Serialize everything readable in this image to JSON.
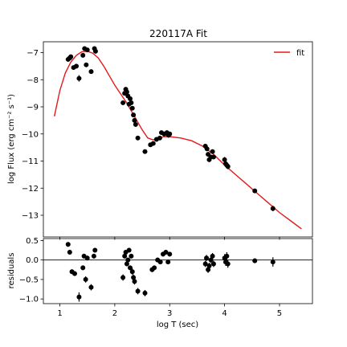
{
  "chart_data": [
    {
      "panel": "main",
      "type": "scatter",
      "title": "220117A Fit",
      "xlabel": "",
      "ylabel": "log Flux (erg cm⁻² s⁻¹)",
      "xlim": [
        0.7,
        5.6
      ],
      "ylim": [
        -13.8,
        -6.6
      ],
      "xticks": [
        1,
        2,
        3,
        4,
        5
      ],
      "yticks": [
        -13,
        -12,
        -11,
        -10,
        -9,
        -8,
        -7
      ],
      "ytick_labels": [
        "−13",
        "−12",
        "−11",
        "−10",
        "−9",
        "−8",
        "−7"
      ],
      "grid": false,
      "legend": {
        "placement": "top-right",
        "entries": [
          {
            "label": "fit",
            "color": "#e31a1c"
          }
        ]
      },
      "series": [
        {
          "name": "fit",
          "kind": "line",
          "color": "#e31a1c",
          "x": [
            0.9,
            1.0,
            1.1,
            1.2,
            1.3,
            1.4,
            1.5,
            1.6,
            1.7,
            1.8,
            1.9,
            2.0,
            2.1,
            2.2,
            2.3,
            2.4,
            2.5,
            2.6,
            2.7,
            2.8,
            2.9,
            3.0,
            3.2,
            3.4,
            3.6,
            3.8,
            4.0,
            4.2,
            4.4,
            4.6,
            4.8,
            5.0,
            5.2,
            5.4
          ],
          "y": [
            -9.35,
            -8.4,
            -7.75,
            -7.35,
            -7.1,
            -6.97,
            -6.95,
            -7.02,
            -7.2,
            -7.5,
            -7.85,
            -8.2,
            -8.5,
            -8.8,
            -9.15,
            -9.5,
            -9.85,
            -10.15,
            -10.22,
            -10.15,
            -10.1,
            -10.1,
            -10.15,
            -10.25,
            -10.45,
            -10.75,
            -11.15,
            -11.5,
            -11.85,
            -12.2,
            -12.55,
            -12.9,
            -13.2,
            -13.5
          ]
        },
        {
          "name": "",
          "kind": "points",
          "color": "#000000",
          "points": [
            [
              1.15,
              -7.25,
              0.05
            ],
            [
              1.18,
              -7.2,
              0.05
            ],
            [
              1.2,
              -7.15,
              0.05
            ],
            [
              1.25,
              -7.55,
              0.05
            ],
            [
              1.3,
              -7.5,
              0.05
            ],
            [
              1.35,
              -7.95,
              0.12
            ],
            [
              1.42,
              -7.1,
              0.05
            ],
            [
              1.45,
              -6.85,
              0.05
            ],
            [
              1.48,
              -7.45,
              0.08
            ],
            [
              1.5,
              -6.9,
              0.05
            ],
            [
              1.57,
              -7.7,
              0.08
            ],
            [
              1.63,
              -6.85,
              0.05
            ],
            [
              1.65,
              -6.95,
              0.05
            ],
            [
              2.15,
              -8.85,
              0.06
            ],
            [
              2.18,
              -8.5,
              0.06
            ],
            [
              2.2,
              -8.35,
              0.06
            ],
            [
              2.22,
              -8.45,
              0.06
            ],
            [
              2.24,
              -8.6,
              0.06
            ],
            [
              2.26,
              -8.9,
              0.06
            ],
            [
              2.28,
              -8.7,
              0.06
            ],
            [
              2.3,
              -8.85,
              0.06
            ],
            [
              2.32,
              -9.05,
              0.08
            ],
            [
              2.34,
              -9.3,
              0.08
            ],
            [
              2.36,
              -9.5,
              0.08
            ],
            [
              2.38,
              -9.65,
              0.08
            ],
            [
              2.42,
              -10.15,
              0.06
            ],
            [
              2.55,
              -10.65,
              0.06
            ],
            [
              2.65,
              -10.4,
              0.06
            ],
            [
              2.7,
              -10.35,
              0.06
            ],
            [
              2.76,
              -10.2,
              0.06
            ],
            [
              2.82,
              -10.15,
              0.06
            ],
            [
              2.85,
              -9.95,
              0.06
            ],
            [
              2.9,
              -10.0,
              0.06
            ],
            [
              2.95,
              -9.95,
              0.06
            ],
            [
              2.98,
              -10.05,
              0.06
            ],
            [
              3.0,
              -10.0,
              0.06
            ],
            [
              3.65,
              -10.45,
              0.08
            ],
            [
              3.68,
              -10.55,
              0.08
            ],
            [
              3.7,
              -10.75,
              0.08
            ],
            [
              3.72,
              -10.95,
              0.08
            ],
            [
              3.75,
              -10.85,
              0.08
            ],
            [
              3.78,
              -10.65,
              0.08
            ],
            [
              3.8,
              -10.85,
              0.08
            ],
            [
              4.0,
              -10.95,
              0.1
            ],
            [
              4.02,
              -11.1,
              0.1
            ],
            [
              4.04,
              -11.15,
              0.1
            ],
            [
              4.06,
              -11.2,
              0.1
            ],
            [
              4.55,
              -12.1,
              0.06
            ],
            [
              4.88,
              -12.75,
              0.1
            ]
          ]
        }
      ]
    },
    {
      "panel": "residuals",
      "type": "scatter",
      "title": "",
      "xlabel": "log T (sec)",
      "ylabel": "residuals",
      "xlim": [
        0.7,
        5.6
      ],
      "ylim": [
        -1.12,
        0.55
      ],
      "xticks": [
        1,
        2,
        3,
        4,
        5
      ],
      "xtick_labels": [
        "1",
        "2",
        "3",
        "4",
        "5"
      ],
      "yticks": [
        -1.0,
        -0.5,
        0.0,
        0.5
      ],
      "ytick_labels": [
        "−1.0",
        "−0.5",
        "0.0",
        "0.5"
      ],
      "grid": false,
      "reference_line": 0.0,
      "series": [
        {
          "name": "",
          "kind": "points",
          "color": "#000000",
          "points": [
            [
              1.15,
              0.4,
              0.06
            ],
            [
              1.18,
              0.2,
              0.06
            ],
            [
              1.22,
              -0.3,
              0.06
            ],
            [
              1.27,
              -0.35,
              0.06
            ],
            [
              1.35,
              -0.95,
              0.12
            ],
            [
              1.42,
              -0.2,
              0.06
            ],
            [
              1.44,
              0.1,
              0.06
            ],
            [
              1.47,
              -0.5,
              0.08
            ],
            [
              1.5,
              0.05,
              0.06
            ],
            [
              1.57,
              -0.7,
              0.08
            ],
            [
              1.62,
              0.1,
              0.06
            ],
            [
              1.64,
              0.25,
              0.06
            ],
            [
              2.15,
              -0.45,
              0.08
            ],
            [
              2.18,
              0.1,
              0.06
            ],
            [
              2.2,
              0.2,
              0.06
            ],
            [
              2.22,
              -0.1,
              0.06
            ],
            [
              2.24,
              0.0,
              0.06
            ],
            [
              2.26,
              0.25,
              0.06
            ],
            [
              2.28,
              -0.2,
              0.06
            ],
            [
              2.3,
              0.1,
              0.06
            ],
            [
              2.32,
              -0.3,
              0.08
            ],
            [
              2.34,
              -0.45,
              0.08
            ],
            [
              2.36,
              -0.55,
              0.08
            ],
            [
              2.42,
              -0.8,
              0.08
            ],
            [
              2.55,
              -0.85,
              0.08
            ],
            [
              2.68,
              -0.25,
              0.06
            ],
            [
              2.72,
              -0.2,
              0.06
            ],
            [
              2.78,
              0.0,
              0.06
            ],
            [
              2.83,
              -0.05,
              0.06
            ],
            [
              2.88,
              0.15,
              0.06
            ],
            [
              2.93,
              0.2,
              0.06
            ],
            [
              2.97,
              -0.05,
              0.06
            ],
            [
              3.0,
              0.15,
              0.06
            ],
            [
              3.65,
              -0.1,
              0.08
            ],
            [
              3.67,
              0.05,
              0.08
            ],
            [
              3.7,
              -0.25,
              0.08
            ],
            [
              3.72,
              -0.15,
              0.08
            ],
            [
              3.75,
              0.0,
              0.08
            ],
            [
              3.78,
              0.1,
              0.08
            ],
            [
              3.8,
              -0.1,
              0.08
            ],
            [
              4.0,
              0.05,
              0.1
            ],
            [
              4.02,
              -0.05,
              0.1
            ],
            [
              4.04,
              0.1,
              0.1
            ],
            [
              4.06,
              -0.1,
              0.1
            ],
            [
              4.55,
              -0.02,
              0.06
            ],
            [
              4.88,
              -0.05,
              0.12
            ]
          ]
        }
      ]
    }
  ]
}
